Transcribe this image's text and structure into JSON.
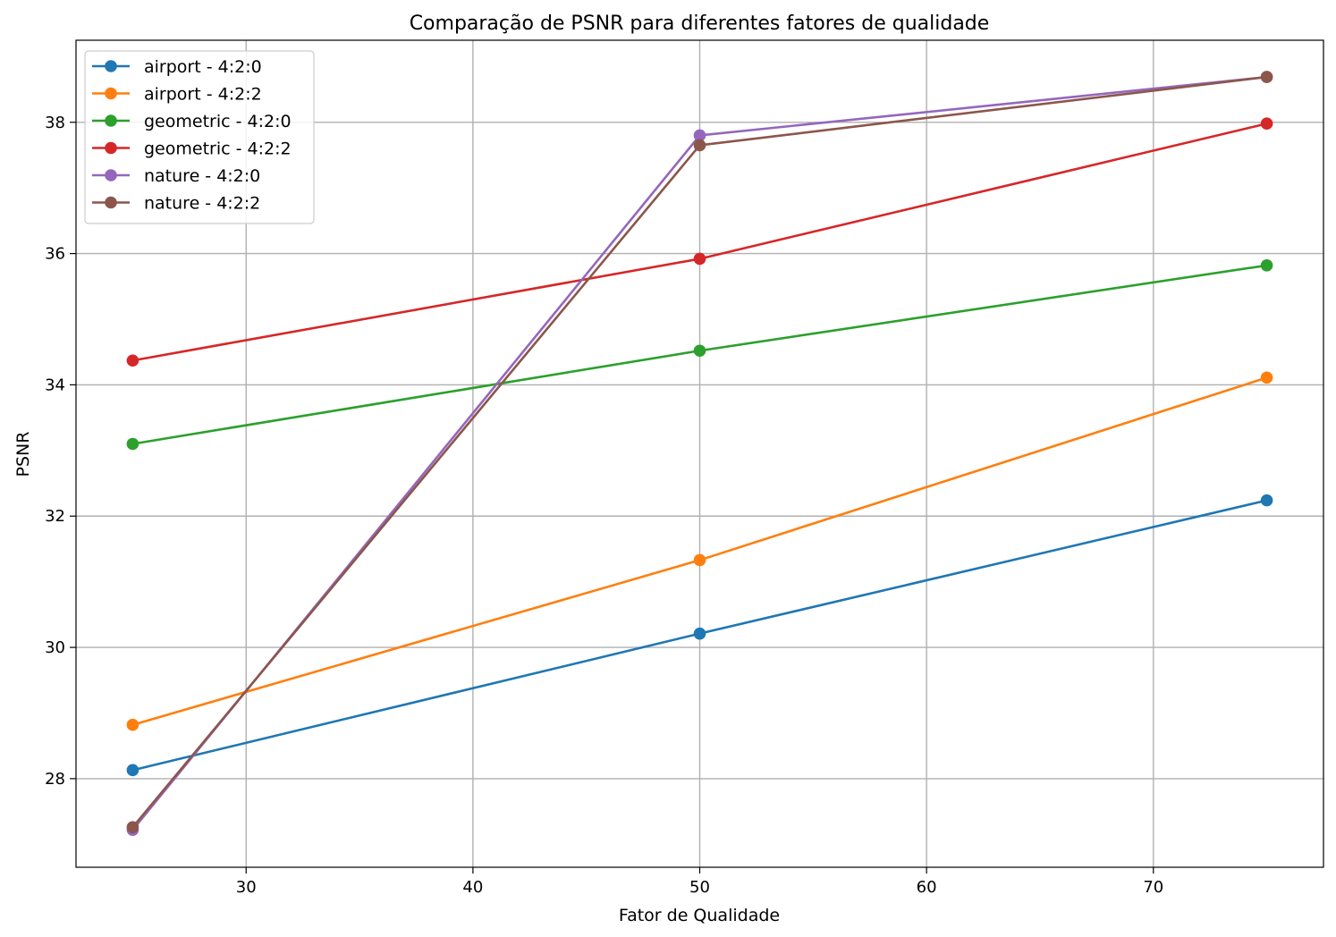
{
  "chart_data": {
    "type": "line",
    "title": "Comparação de PSNR para diferentes fatores de qualidade",
    "xlabel": "Fator de Qualidade",
    "ylabel": "PSNR",
    "xlim": [
      22.5,
      77.5
    ],
    "ylim": [
      26.65,
      39.25
    ],
    "xticks": [
      30,
      40,
      50,
      60,
      70
    ],
    "yticks": [
      28,
      30,
      32,
      34,
      36,
      38
    ],
    "grid": true,
    "legend_position": "top-left",
    "x": [
      25,
      50,
      75
    ],
    "series": [
      {
        "name": "airport - 4:2:0",
        "color": "#1f77b4",
        "values": [
          28.13,
          30.21,
          32.24
        ]
      },
      {
        "name": "airport - 4:2:2",
        "color": "#ff7f0e",
        "values": [
          28.82,
          31.33,
          34.11
        ]
      },
      {
        "name": "geometric - 4:2:0",
        "color": "#2ca02c",
        "values": [
          33.1,
          34.52,
          35.82
        ]
      },
      {
        "name": "geometric - 4:2:2",
        "color": "#d62728",
        "values": [
          34.37,
          35.92,
          37.98
        ]
      },
      {
        "name": "nature - 4:2:0",
        "color": "#9467bd",
        "values": [
          27.22,
          37.8,
          38.69
        ]
      },
      {
        "name": "nature - 4:2:2",
        "color": "#8c564b",
        "values": [
          27.26,
          37.65,
          38.69
        ]
      }
    ]
  }
}
